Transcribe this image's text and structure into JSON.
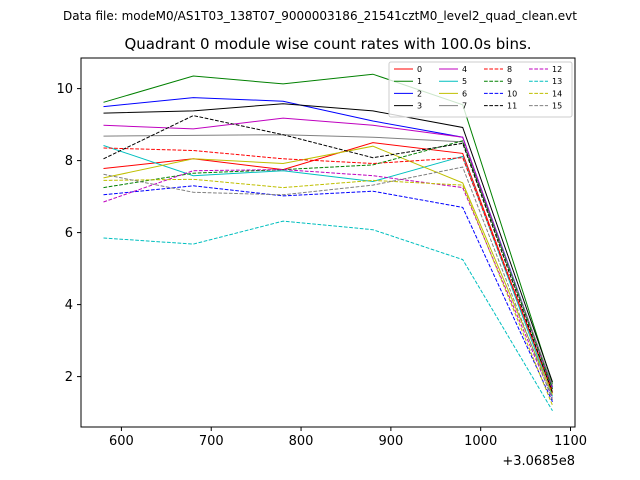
{
  "chart_data": {
    "type": "line",
    "suptitle": "Data file: modeM0/AS1T03_138T07_9000003186_21541cztM0_level2_quad_clean.evt",
    "title": "Quadrant 0 module wise count rates with 100.0s bins.",
    "xlabel": "",
    "ylabel": "",
    "x_offset_label": "+3.0685e8",
    "x": [
      580,
      680,
      780,
      880,
      980,
      1080
    ],
    "xlim": [
      555,
      1105
    ],
    "ylim": [
      0.6,
      10.85
    ],
    "xticks": [
      600,
      700,
      800,
      900,
      1000,
      1100
    ],
    "yticks": [
      2,
      4,
      6,
      8,
      10
    ],
    "grid": false,
    "legend_position": "top-right",
    "series": [
      {
        "name": "0",
        "color": "#ff0000",
        "dash": "solid",
        "values": [
          7.78,
          8.05,
          7.75,
          8.5,
          8.2,
          1.55
        ]
      },
      {
        "name": "1",
        "color": "#008000",
        "dash": "solid",
        "values": [
          9.62,
          10.35,
          10.13,
          10.4,
          9.55,
          1.8
        ]
      },
      {
        "name": "2",
        "color": "#0000ff",
        "dash": "solid",
        "values": [
          9.5,
          9.75,
          9.65,
          9.1,
          8.65,
          1.7
        ]
      },
      {
        "name": "3",
        "color": "#000000",
        "dash": "solid",
        "values": [
          9.32,
          9.38,
          9.58,
          9.38,
          8.92,
          1.85
        ]
      },
      {
        "name": "4",
        "color": "#bf00bf",
        "dash": "solid",
        "values": [
          8.98,
          8.88,
          9.18,
          8.98,
          8.65,
          1.65
        ]
      },
      {
        "name": "5",
        "color": "#00bfbf",
        "dash": "solid",
        "values": [
          8.42,
          7.58,
          7.72,
          7.42,
          8.12,
          1.45
        ]
      },
      {
        "name": "6",
        "color": "#bfbf00",
        "dash": "solid",
        "values": [
          7.52,
          8.05,
          7.92,
          8.4,
          7.38,
          1.5
        ]
      },
      {
        "name": "7",
        "color": "#808080",
        "dash": "solid",
        "values": [
          8.68,
          8.7,
          8.72,
          8.65,
          8.52,
          1.75
        ]
      },
      {
        "name": "8",
        "color": "#ff0000",
        "dash": "dashed",
        "values": [
          8.35,
          8.28,
          8.05,
          7.92,
          8.08,
          1.6
        ]
      },
      {
        "name": "9",
        "color": "#008000",
        "dash": "dashed",
        "values": [
          7.25,
          7.65,
          7.75,
          7.88,
          8.55,
          1.65
        ]
      },
      {
        "name": "10",
        "color": "#0000ff",
        "dash": "dashed",
        "values": [
          7.05,
          7.3,
          7.02,
          7.15,
          6.7,
          1.3
        ]
      },
      {
        "name": "11",
        "color": "#000000",
        "dash": "dashed",
        "values": [
          8.05,
          9.25,
          8.72,
          8.08,
          8.48,
          1.55
        ]
      },
      {
        "name": "12",
        "color": "#bf00bf",
        "dash": "dashed",
        "values": [
          6.85,
          7.72,
          7.75,
          7.58,
          7.25,
          1.4
        ]
      },
      {
        "name": "13",
        "color": "#00bfbf",
        "dash": "dashed",
        "values": [
          5.85,
          5.68,
          6.32,
          6.08,
          5.25,
          1.05
        ]
      },
      {
        "name": "14",
        "color": "#bfbf00",
        "dash": "dashed",
        "values": [
          7.45,
          7.48,
          7.25,
          7.45,
          7.32,
          1.2
        ]
      },
      {
        "name": "15",
        "color": "#808080",
        "dash": "dashed",
        "values": [
          7.62,
          7.12,
          7.05,
          7.32,
          7.82,
          1.35
        ]
      }
    ]
  }
}
